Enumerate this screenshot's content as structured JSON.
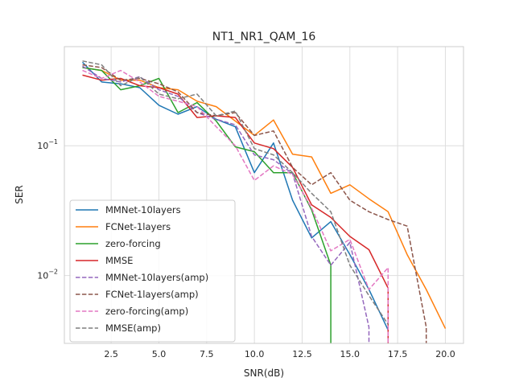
{
  "chart_data": {
    "type": "line",
    "title": "NT1_NR1_QAM_16",
    "xlabel": "SNR(dB)",
    "ylabel": "SER",
    "x_scale": "linear",
    "y_scale": "log",
    "xlim": [
      0.05,
      20.95
    ],
    "ylim": [
      0.003,
      0.58
    ],
    "x_ticks": [
      2.5,
      5.0,
      7.5,
      10.0,
      12.5,
      15.0,
      17.5,
      20.0
    ],
    "x_tick_labels": [
      "2.5",
      "5.0",
      "7.5",
      "10.0",
      "12.5",
      "15.0",
      "17.5",
      "20.0"
    ],
    "y_ticks": [
      0.01,
      0.1
    ],
    "y_tick_labels": [
      "10^-2",
      "10^-1"
    ],
    "grid": true,
    "legend_position": "lower-left",
    "series": [
      {
        "name": "MMNet-10layers",
        "color": "#1f77b4",
        "dash": "solid",
        "x": [
          1,
          2,
          3,
          4,
          5,
          6,
          7,
          8,
          9,
          10,
          11,
          12,
          13,
          14,
          15,
          16,
          17
        ],
        "y": [
          0.44,
          0.31,
          0.3,
          0.28,
          0.205,
          0.175,
          0.2,
          0.16,
          0.14,
          0.062,
          0.105,
          0.038,
          0.0195,
          0.026,
          0.0145,
          0.0078,
          0.0038
        ]
      },
      {
        "name": "FCNet-1layers",
        "color": "#ff7f0e",
        "dash": "solid",
        "x": [
          1,
          2,
          3,
          4,
          5,
          6,
          7,
          8,
          9,
          10,
          11,
          12,
          13,
          14,
          15,
          16,
          17,
          18,
          19,
          20
        ],
        "y": [
          0.4,
          0.38,
          0.32,
          0.32,
          0.28,
          0.27,
          0.22,
          0.2,
          0.155,
          0.12,
          0.158,
          0.086,
          0.082,
          0.043,
          0.05,
          0.039,
          0.031,
          0.0145,
          0.0078,
          0.0039
        ]
      },
      {
        "name": "zero-forcing",
        "color": "#2ca02c",
        "dash": "solid",
        "x": [
          1,
          2,
          3,
          4,
          5,
          6,
          7,
          8,
          9,
          10,
          11,
          12,
          13,
          14,
          14
        ],
        "y": [
          0.4,
          0.38,
          0.27,
          0.29,
          0.33,
          0.18,
          0.215,
          0.155,
          0.098,
          0.09,
          0.062,
          0.062,
          0.032,
          0.012,
          0.003
        ]
      },
      {
        "name": "MMSE",
        "color": "#d62728",
        "dash": "solid",
        "x": [
          1,
          2,
          3,
          4,
          5,
          6,
          7,
          8,
          9,
          10,
          11,
          12,
          13,
          14,
          15,
          16,
          17,
          17
        ],
        "y": [
          0.35,
          0.32,
          0.33,
          0.29,
          0.28,
          0.25,
          0.165,
          0.17,
          0.165,
          0.105,
          0.095,
          0.068,
          0.035,
          0.028,
          0.02,
          0.0158,
          0.008,
          0.003
        ]
      },
      {
        "name": "MMNet-10layers(amp)",
        "color": "#9467bd",
        "dash": "dashed",
        "x": [
          1,
          2,
          3,
          4,
          5,
          6,
          7,
          8,
          9,
          10,
          11,
          12,
          13,
          14,
          15,
          16,
          16
        ],
        "y": [
          0.41,
          0.33,
          0.31,
          0.34,
          0.27,
          0.24,
          0.18,
          0.16,
          0.145,
          0.085,
          0.078,
          0.061,
          0.02,
          0.012,
          0.018,
          0.004,
          0.003
        ]
      },
      {
        "name": "FCNet-1layers(amp)",
        "color": "#8c564b",
        "dash": "dashed",
        "x": [
          1,
          2,
          3,
          4,
          5,
          6,
          7,
          8,
          9,
          10,
          11,
          12,
          13,
          14,
          15,
          16,
          17,
          18,
          19,
          19
        ],
        "y": [
          0.42,
          0.4,
          0.32,
          0.33,
          0.3,
          0.26,
          0.18,
          0.17,
          0.18,
          0.12,
          0.13,
          0.068,
          0.05,
          0.062,
          0.038,
          0.031,
          0.027,
          0.024,
          0.004,
          0.003
        ]
      },
      {
        "name": "zero-forcing(amp)",
        "color": "#e377c2",
        "dash": "dashed",
        "x": [
          1,
          2,
          3,
          4,
          5,
          6,
          7,
          8,
          9,
          10,
          11,
          12,
          13,
          14,
          15,
          16,
          17,
          17
        ],
        "y": [
          0.38,
          0.33,
          0.38,
          0.31,
          0.24,
          0.22,
          0.2,
          0.14,
          0.1,
          0.054,
          0.07,
          0.06,
          0.033,
          0.0155,
          0.019,
          0.0078,
          0.0115,
          0.003
        ]
      },
      {
        "name": "MMSE(amp)",
        "color": "#7f7f7f",
        "dash": "dashed",
        "x": [
          1,
          2,
          3,
          4,
          5,
          6,
          7,
          8,
          9,
          10,
          11,
          12,
          13,
          14,
          15,
          16,
          17
        ],
        "y": [
          0.45,
          0.42,
          0.29,
          0.34,
          0.25,
          0.23,
          0.25,
          0.17,
          0.185,
          0.095,
          0.085,
          0.062,
          0.043,
          0.031,
          0.012,
          0.007,
          0.0042
        ]
      }
    ]
  }
}
